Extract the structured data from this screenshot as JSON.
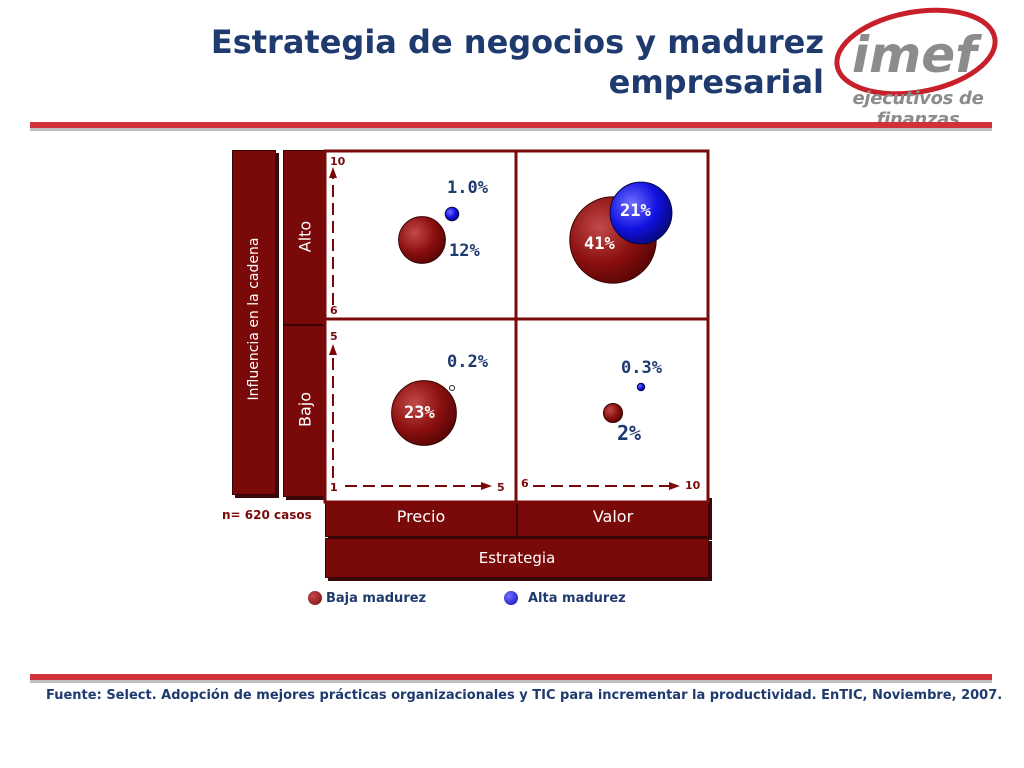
{
  "title": "Estrategia de negocios y madurez empresarial",
  "logo": {
    "mark": "imef",
    "tagline": "ejecutivos de finanzas"
  },
  "y_axis": {
    "label": "Influencia en la cadena",
    "high": "Alto",
    "low": "Bajo"
  },
  "x_axis": {
    "label": "Estrategia",
    "left": "Precio",
    "right": "Valor"
  },
  "sample": "n= 620 casos",
  "legend": {
    "low": "Baja madurez",
    "high": "Alta madurez"
  },
  "source": "Fuente: Select. Adopción de mejores prácticas organizacionales y TIC para incrementar la productividad. EnTIC, Noviembre, 2007.",
  "colors": {
    "low": "#8b0f0f",
    "high": "#1010e0",
    "frame": "#7a0a0a",
    "title": "#1f3a6f",
    "rule": "#d0313b"
  },
  "chart_data": {
    "type": "scatter",
    "xlabel": "Estrategia",
    "ylabel": "Influencia en la cadena",
    "x_ticks": [
      "1",
      "5",
      "6",
      "10"
    ],
    "y_ticks": [
      "1",
      "5",
      "6",
      "10"
    ],
    "quadrants": [
      {
        "x": "Precio",
        "y": "Alto"
      },
      {
        "x": "Valor",
        "y": "Alto"
      },
      {
        "x": "Precio",
        "y": "Bajo"
      },
      {
        "x": "Valor",
        "y": "Bajo"
      }
    ],
    "series": [
      {
        "name": "Baja madurez",
        "points": [
          {
            "x": "Precio",
            "y": "Alto",
            "value": 12,
            "label": "12%"
          },
          {
            "x": "Valor",
            "y": "Alto",
            "value": 41,
            "label": "41%"
          },
          {
            "x": "Precio",
            "y": "Bajo",
            "value": 23,
            "label": "23%"
          },
          {
            "x": "Valor",
            "y": "Bajo",
            "value": 2,
            "label": "2%"
          }
        ]
      },
      {
        "name": "Alta madurez",
        "points": [
          {
            "x": "Precio",
            "y": "Alto",
            "value": 1.0,
            "label": "1.0%"
          },
          {
            "x": "Valor",
            "y": "Alto",
            "value": 21,
            "label": "21%"
          },
          {
            "x": "Precio",
            "y": "Bajo",
            "value": 0.2,
            "label": "0.2%"
          },
          {
            "x": "Valor",
            "y": "Bajo",
            "value": 0.3,
            "label": "0.3%"
          }
        ]
      }
    ]
  }
}
